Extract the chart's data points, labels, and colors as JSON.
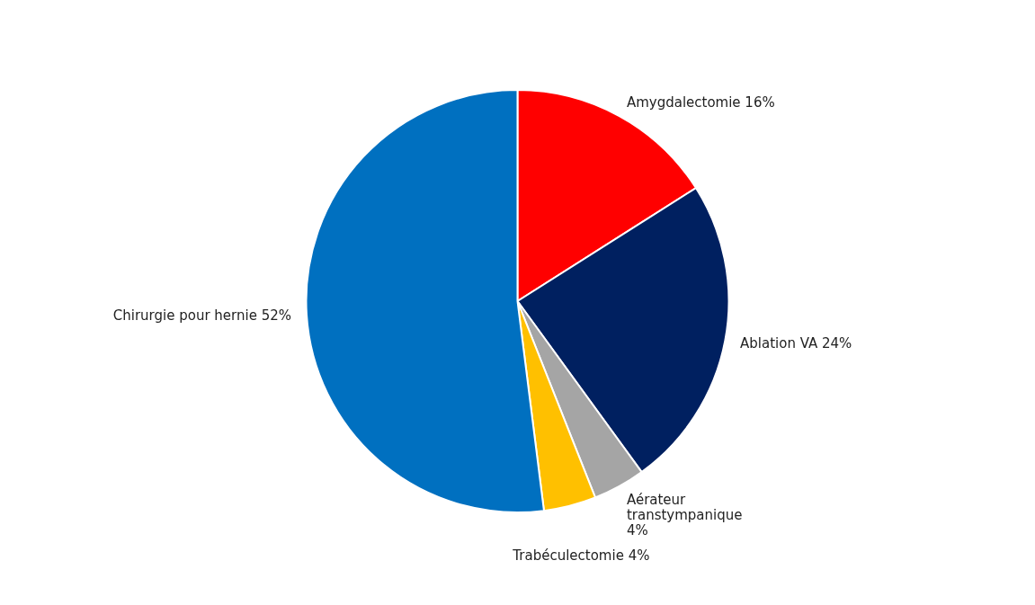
{
  "chart_data": {
    "type": "pie",
    "categories": [
      "Amygdalectomie",
      "Ablation VA",
      "Aérateur transtympanique",
      "Trabéculectomie",
      "Chirurgie pour hernie"
    ],
    "values": [
      16,
      24,
      4,
      4,
      52
    ],
    "value_labels": [
      "16%",
      "24%",
      "4%",
      "4%",
      "52%"
    ],
    "colors": [
      "#ff0000",
      "#002060",
      "#a5a5a5",
      "#ffc000",
      "#0070c0"
    ],
    "legend": false
  }
}
